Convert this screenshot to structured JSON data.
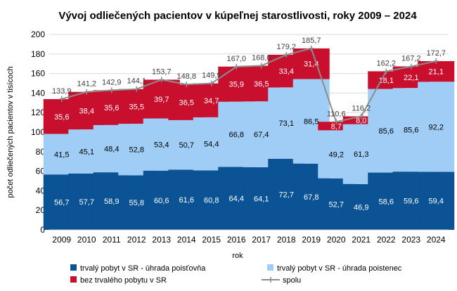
{
  "chart_data": {
    "type": "bar",
    "stacked": true,
    "title": "Vývoj odliečených pacientov v kúpeľnej starostlivosti, roky 2009 – 2024",
    "xlabel": "rok",
    "ylabel": "počet odliečených pacientov v tisícoch",
    "ylim": [
      0,
      200
    ],
    "ytick_step": 20,
    "grid": true,
    "categories": [
      "2009",
      "2010",
      "2011",
      "2012",
      "2013",
      "2014",
      "2015",
      "2016",
      "2017",
      "2018",
      "2019",
      "2020",
      "2021",
      "2022",
      "2023",
      "2024"
    ],
    "series": [
      {
        "name": "trvalý pobyt v SR - úhrada poisťovňa",
        "color": "#0b5394",
        "label_color": "#ffffff",
        "values": [
          56.7,
          57.7,
          58.9,
          55.8,
          60.6,
          61.6,
          60.8,
          64.4,
          64.1,
          72.7,
          67.8,
          52.7,
          46.9,
          58.6,
          59.6,
          59.4
        ],
        "labels": [
          "56,7",
          "57,7",
          "58,9",
          "55,8",
          "60,6",
          "61,6",
          "60,8",
          "64,4",
          "64,1",
          "72,7",
          "67,8",
          "52,7",
          "46,9",
          "58,6",
          "59,6",
          "59,4"
        ]
      },
      {
        "name": "trvalý pobyt v SR - úhrada poistenec",
        "color": "#9fcdf5",
        "label_color": "#000000",
        "values": [
          41.5,
          45.1,
          48.4,
          52.8,
          53.4,
          50.7,
          54.4,
          66.8,
          67.4,
          73.1,
          86.5,
          49.2,
          61.3,
          85.6,
          85.6,
          92.2
        ],
        "labels": [
          "41,5",
          "45,1",
          "48,4",
          "52,8",
          "53,4",
          "50,7",
          "54,4",
          "66,8",
          "67,4",
          "73,1",
          "86,5",
          "49,2",
          "61,3",
          "85,6",
          "85,6",
          "92,2"
        ]
      },
      {
        "name": "bez trvalého pobytu v SR",
        "color": "#c8102e",
        "label_color": "#ffffff",
        "values": [
          35.6,
          38.4,
          35.6,
          35.5,
          39.7,
          36.5,
          34.7,
          35.9,
          36.5,
          33.4,
          31.4,
          8.7,
          8.0,
          18.1,
          22.1,
          21.1
        ],
        "labels": [
          "35,6",
          "38,4",
          "35,6",
          "35,5",
          "39,7",
          "36,5",
          "34,7",
          "35,9",
          "36,5",
          "33,4",
          "31,4",
          "8,7",
          "8,0",
          "18,1",
          "22,1",
          "21,1"
        ]
      }
    ],
    "total": {
      "name": "spolu",
      "color": "#8c8c8c",
      "values": [
        133.9,
        141.2,
        142.9,
        144.1,
        153.7,
        148.8,
        149.9,
        167.0,
        168.0,
        179.2,
        185.7,
        110.6,
        116.2,
        162.2,
        167.2,
        172.7
      ],
      "labels": [
        "133,9",
        "141,2",
        "142,9",
        "144,1",
        "153,7",
        "148,8",
        "149,9",
        "167,0",
        "168,0",
        "179,2",
        "185,7",
        "110,6",
        "116,2",
        "162,2",
        "167,2",
        "172,7"
      ]
    }
  }
}
